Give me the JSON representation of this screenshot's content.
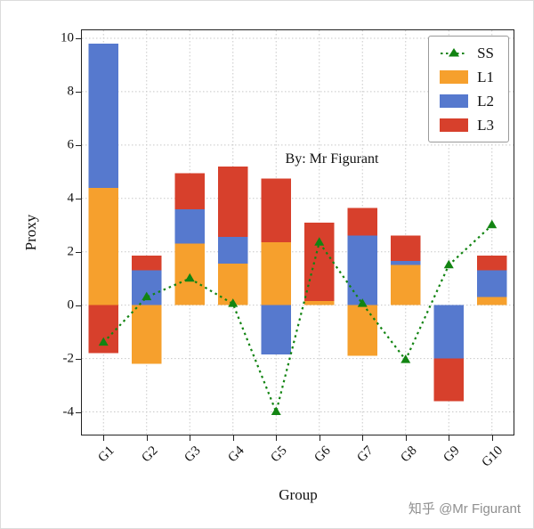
{
  "figure": {
    "annotation": "By: Mr Figurant",
    "watermark": "知乎 @Mr Figurant"
  },
  "chart_data": {
    "type": "bar",
    "stacked": true,
    "title": "",
    "xlabel": "Group",
    "ylabel": "Proxy",
    "categories": [
      "G1",
      "G2",
      "G3",
      "G4",
      "G5",
      "G6",
      "G7",
      "G8",
      "G9",
      "G10"
    ],
    "series": [
      {
        "name": "L1",
        "color": "#F6A02D",
        "values": [
          4.4,
          -2.2,
          2.3,
          1.55,
          2.35,
          0.15,
          -1.9,
          1.5,
          0,
          0.3
        ]
      },
      {
        "name": "L2",
        "color": "#5679CE",
        "values": [
          5.4,
          1.3,
          1.3,
          1.0,
          -1.85,
          0,
          2.6,
          0.15,
          -2.0,
          1.0
        ]
      },
      {
        "name": "L3",
        "color": "#D7402C",
        "values": [
          -1.8,
          0.55,
          1.35,
          2.65,
          2.4,
          2.95,
          1.05,
          0.95,
          -1.6,
          0.55
        ]
      }
    ],
    "line_series": {
      "name": "SS",
      "color": "#128412",
      "style": "dotted",
      "marker": "triangle",
      "values": [
        -1.4,
        0.3,
        1.0,
        0.05,
        -4.0,
        2.35,
        0.05,
        -2.05,
        1.5,
        3.0
      ]
    },
    "yticks": [
      -4,
      -2,
      0,
      2,
      4,
      6,
      8,
      10
    ],
    "ylim": [
      -4.85,
      10.3
    ],
    "grid": "dotted both axes",
    "grid_color": "#c8c8c8",
    "legend": {
      "position": "upper right",
      "entries": [
        "SS",
        "L1",
        "L2",
        "L3"
      ]
    }
  }
}
